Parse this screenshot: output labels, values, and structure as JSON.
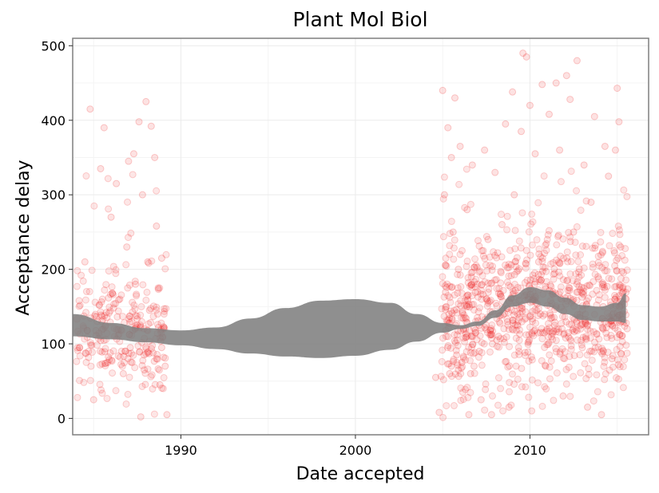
{
  "chart_data": {
    "type": "scatter",
    "title": "Plant Mol Biol",
    "xlabel": "Date accepted",
    "ylabel": "Acceptance delay",
    "xlim": [
      1983.8,
      2016.8
    ],
    "ylim": [
      -22,
      510
    ],
    "xticks": [
      1990,
      2000,
      2010
    ],
    "yticks": [
      0,
      100,
      200,
      300,
      400,
      500
    ],
    "grid": true,
    "legend": "none",
    "colors": {
      "points": "#ee1c1c",
      "band": "#808080",
      "grid": "#ebebeb",
      "border": "#7f7f7f"
    },
    "smooth_band": {
      "x": [
        1983.8,
        1986,
        1988,
        1990,
        1992,
        1994,
        1996,
        1998,
        2000,
        2002,
        2003.5,
        2005,
        2006,
        2007,
        2008,
        2009,
        2010,
        2011,
        2012,
        2013,
        2014,
        2015,
        2015.5
      ],
      "lower": [
        110,
        106,
        102,
        98,
        93,
        87,
        83,
        81,
        84,
        92,
        103,
        115,
        120,
        124,
        135,
        150,
        155,
        150,
        140,
        132,
        130,
        130,
        128
      ],
      "upper": [
        140,
        128,
        121,
        118,
        122,
        134,
        148,
        158,
        160,
        155,
        140,
        128,
        125,
        130,
        145,
        165,
        176,
        172,
        162,
        152,
        150,
        155,
        168
      ]
    },
    "points": [
      {
        "x": 1984.2,
        "y": 95
      },
      {
        "x": 1984.5,
        "y": 210
      },
      {
        "x": 1984.8,
        "y": 415
      },
      {
        "x": 1985.0,
        "y": 25
      },
      {
        "x": 1985.2,
        "y": 130
      },
      {
        "x": 1985.4,
        "y": 335
      },
      {
        "x": 1985.6,
        "y": 390
      },
      {
        "x": 1985.8,
        "y": 75
      },
      {
        "x": 1986.0,
        "y": 270
      },
      {
        "x": 1986.2,
        "y": 110
      },
      {
        "x": 1986.3,
        "y": 315
      },
      {
        "x": 1986.5,
        "y": 160
      },
      {
        "x": 1986.7,
        "y": 60
      },
      {
        "x": 1986.9,
        "y": 230
      },
      {
        "x": 1987.0,
        "y": 345
      },
      {
        "x": 1987.1,
        "y": 95
      },
      {
        "x": 1987.3,
        "y": 355
      },
      {
        "x": 1987.4,
        "y": 180
      },
      {
        "x": 1987.5,
        "y": 125
      },
      {
        "x": 1987.6,
        "y": 398
      },
      {
        "x": 1987.7,
        "y": 2
      },
      {
        "x": 1987.8,
        "y": 300
      },
      {
        "x": 1987.9,
        "y": 65
      },
      {
        "x": 1988.0,
        "y": 425
      },
      {
        "x": 1988.1,
        "y": 210
      },
      {
        "x": 1988.2,
        "y": 145
      },
      {
        "x": 1988.3,
        "y": 392
      },
      {
        "x": 1988.4,
        "y": 88
      },
      {
        "x": 1988.5,
        "y": 350
      },
      {
        "x": 1988.6,
        "y": 258
      },
      {
        "x": 1988.7,
        "y": 175
      },
      {
        "x": 1988.8,
        "y": 45
      },
      {
        "x": 1988.9,
        "y": 215
      },
      {
        "x": 1989.0,
        "y": 120
      },
      {
        "x": 1989.1,
        "y": 70
      },
      {
        "x": 1989.2,
        "y": 5
      },
      {
        "x": 1986.8,
        "y": 90
      },
      {
        "x": 1987.2,
        "y": 75
      },
      {
        "x": 1988.6,
        "y": 80
      },
      {
        "x": 1988.9,
        "y": 95
      },
      {
        "x": 2004.6,
        "y": 55
      },
      {
        "x": 2004.8,
        "y": 8
      },
      {
        "x": 2005.0,
        "y": 440
      },
      {
        "x": 2005.1,
        "y": 300
      },
      {
        "x": 2005.2,
        "y": 150
      },
      {
        "x": 2005.3,
        "y": 390
      },
      {
        "x": 2005.4,
        "y": 60
      },
      {
        "x": 2005.5,
        "y": 350
      },
      {
        "x": 2005.6,
        "y": 250
      },
      {
        "x": 2005.7,
        "y": 430
      },
      {
        "x": 2005.8,
        "y": 85
      },
      {
        "x": 2005.9,
        "y": 200
      },
      {
        "x": 2006.0,
        "y": 365
      },
      {
        "x": 2006.2,
        "y": 120
      },
      {
        "x": 2006.4,
        "y": 280
      },
      {
        "x": 2006.5,
        "y": 5
      },
      {
        "x": 2006.7,
        "y": 340
      },
      {
        "x": 2006.8,
        "y": 70
      },
      {
        "x": 2007.0,
        "y": 180
      },
      {
        "x": 2007.2,
        "y": 25
      },
      {
        "x": 2007.4,
        "y": 360
      },
      {
        "x": 2007.6,
        "y": 240
      },
      {
        "x": 2007.8,
        "y": 5
      },
      {
        "x": 2008.0,
        "y": 330
      },
      {
        "x": 2008.2,
        "y": 110
      },
      {
        "x": 2008.4,
        "y": 260
      },
      {
        "x": 2008.6,
        "y": 395
      },
      {
        "x": 2008.8,
        "y": 15
      },
      {
        "x": 2009.0,
        "y": 438
      },
      {
        "x": 2009.1,
        "y": 300
      },
      {
        "x": 2009.3,
        "y": 140
      },
      {
        "x": 2009.5,
        "y": 385
      },
      {
        "x": 2009.6,
        "y": 490
      },
      {
        "x": 2009.8,
        "y": 485
      },
      {
        "x": 2010.0,
        "y": 420
      },
      {
        "x": 2010.1,
        "y": 10
      },
      {
        "x": 2010.3,
        "y": 355
      },
      {
        "x": 2010.5,
        "y": 210
      },
      {
        "x": 2010.7,
        "y": 448
      },
      {
        "x": 2010.9,
        "y": 70
      },
      {
        "x": 2011.1,
        "y": 408
      },
      {
        "x": 2011.3,
        "y": 170
      },
      {
        "x": 2011.5,
        "y": 450
      },
      {
        "x": 2011.7,
        "y": 360
      },
      {
        "x": 2011.9,
        "y": 30
      },
      {
        "x": 2012.1,
        "y": 460
      },
      {
        "x": 2012.3,
        "y": 428
      },
      {
        "x": 2012.5,
        "y": 250
      },
      {
        "x": 2012.7,
        "y": 480
      },
      {
        "x": 2012.9,
        "y": 120
      },
      {
        "x": 2013.1,
        "y": 340
      },
      {
        "x": 2013.3,
        "y": 15
      },
      {
        "x": 2013.5,
        "y": 290
      },
      {
        "x": 2013.7,
        "y": 405
      },
      {
        "x": 2013.9,
        "y": 190
      },
      {
        "x": 2014.1,
        "y": 5
      },
      {
        "x": 2014.3,
        "y": 365
      },
      {
        "x": 2014.5,
        "y": 325
      },
      {
        "x": 2014.7,
        "y": 80
      },
      {
        "x": 2014.9,
        "y": 360
      },
      {
        "x": 2015.0,
        "y": 443
      },
      {
        "x": 2015.1,
        "y": 398
      },
      {
        "x": 2015.2,
        "y": 230
      },
      {
        "x": 2015.3,
        "y": 140
      },
      {
        "x": 2005.5,
        "y": 70
      },
      {
        "x": 2005.9,
        "y": 65
      },
      {
        "x": 2006.1,
        "y": 75
      },
      {
        "x": 2006.6,
        "y": 60
      },
      {
        "x": 2007.1,
        "y": 90
      },
      {
        "x": 2008.1,
        "y": 105
      },
      {
        "x": 2009.9,
        "y": 160
      },
      {
        "x": 2010.6,
        "y": 140
      },
      {
        "x": 2012.2,
        "y": 115
      },
      {
        "x": 2014.2,
        "y": 150
      }
    ]
  }
}
